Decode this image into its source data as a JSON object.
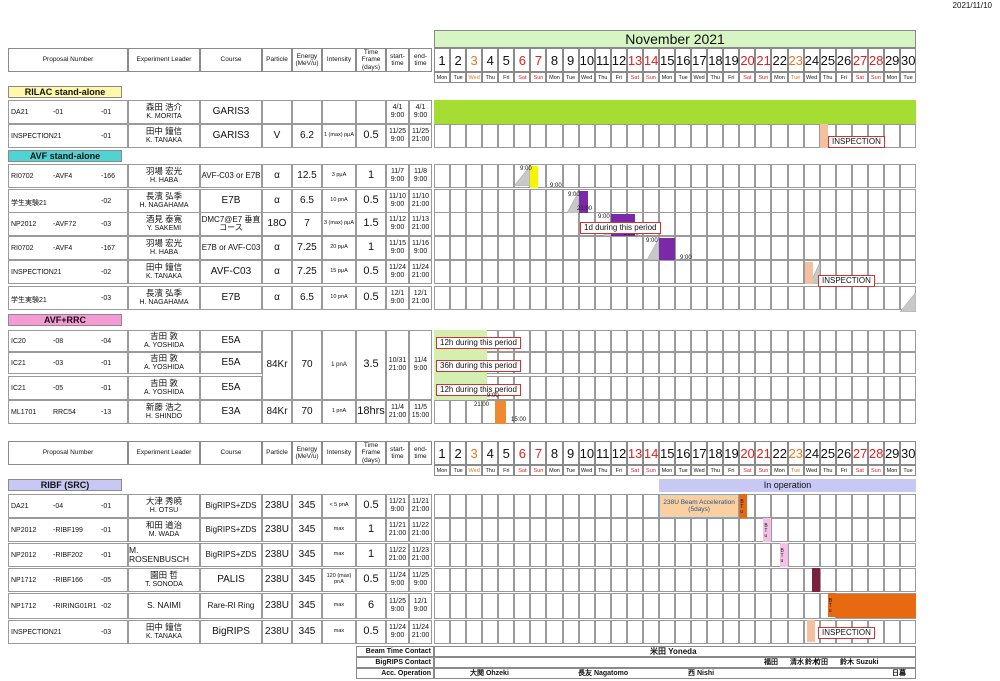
{
  "date_stamp": "2021/11/10",
  "month": "November 2021",
  "headers": {
    "proposal": "Proposal Number",
    "leader": "Experiment Leader",
    "course": "Course",
    "particle": "Particle",
    "energy": "Energy (MeV/u)",
    "intensity": "Intensity",
    "timeframe": "Time Frame (days)",
    "start": "start-time",
    "end": "end-time"
  },
  "days": [
    "1",
    "2",
    "3",
    "4",
    "5",
    "6",
    "7",
    "8",
    "9",
    "10",
    "11",
    "12",
    "13",
    "14",
    "15",
    "16",
    "17",
    "18",
    "19",
    "20",
    "21",
    "22",
    "23",
    "24",
    "25",
    "26",
    "27",
    "28",
    "29",
    "30"
  ],
  "dows": [
    "Mon",
    "Tue",
    "Wed",
    "Thu",
    "Fri",
    "Sat",
    "Sun",
    "Mon",
    "Tue",
    "Wed",
    "Thu",
    "Fri",
    "Sat",
    "Sun",
    "Mon",
    "Tue",
    "Wed",
    "Thu",
    "Fri",
    "Sat",
    "Sun",
    "Mon",
    "Tue",
    "Wed",
    "Thu",
    "Fri",
    "Sat",
    "Sun",
    "Mon",
    "Tue"
  ],
  "sections": {
    "rilac": "RILAC stand-alone",
    "avf": "AVF stand-alone",
    "avfrrc": "AVF+RRC",
    "ribf": "RIBF (SRC)"
  },
  "rilac": [
    {
      "pn": "DA21",
      "sub": "-01",
      "num": "-01",
      "l1": "森田 浩介",
      "l2": "K. MORITA",
      "course": "GARIS3",
      "particle": "",
      "energy": "",
      "intensity": "",
      "tf": "",
      "s1": "4/1",
      "s2": "9:00",
      "e1": "4/1",
      "e2": "9:00"
    },
    {
      "pn": "INSPECTION21",
      "sub": "",
      "num": "-01",
      "l1": "田中 鐘信",
      "l2": "K. TANAKA",
      "course": "GARIS3",
      "particle": "V",
      "energy": "6.2",
      "intensity": "1 (max) pμA",
      "tf": "0.5",
      "s1": "11/25",
      "s2": "9:00",
      "e1": "11/25",
      "e2": "21:00"
    }
  ],
  "avf": [
    {
      "pn": "RI0702",
      "sub": "-AVF4",
      "num": "-166",
      "l1": "羽場 宏光",
      "l2": "H. HABA",
      "course": "AVF-C03 or E7B",
      "particle": "α",
      "energy": "12.5",
      "intensity": "3 pμA",
      "tf": "1",
      "s1": "11/7",
      "s2": "9:00",
      "e1": "11/8",
      "e2": "9:00"
    },
    {
      "pn": "学生実験21",
      "sub": "",
      "num": "-02",
      "l1": "長濱 弘季",
      "l2": "H. NAGAHAMA",
      "course": "E7B",
      "particle": "α",
      "energy": "6.5",
      "intensity": "10 pnA",
      "tf": "0.5",
      "s1": "11/10",
      "s2": "9:00",
      "e1": "11/10",
      "e2": "21:00"
    },
    {
      "pn": "NP2012",
      "sub": "-AVF72",
      "num": "-03",
      "l1": "酒見 泰寛",
      "l2": "Y. SAKEMI",
      "course": "DMC7@E7 垂直コース",
      "particle": "18O",
      "energy": "7",
      "intensity": "3 (max) pμA",
      "tf": "1.5",
      "s1": "11/12",
      "s2": "9:00",
      "e1": "11/13",
      "e2": "21:00"
    },
    {
      "pn": "RI0702",
      "sub": "-AVF4",
      "num": "-167",
      "l1": "羽場 宏光",
      "l2": "H. HABA",
      "course": "E7B or AVF-C03",
      "particle": "α",
      "energy": "7.25",
      "intensity": "20 pμA",
      "tf": "1",
      "s1": "11/15",
      "s2": "9:00",
      "e1": "11/16",
      "e2": "9:00"
    },
    {
      "pn": "INSPECTION21",
      "sub": "",
      "num": "-02",
      "l1": "田中 鐘信",
      "l2": "K. TANAKA",
      "course": "AVF-C03",
      "particle": "α",
      "energy": "7.25",
      "intensity": "15 pμA",
      "tf": "0.5",
      "s1": "11/24",
      "s2": "9:00",
      "e1": "11/24",
      "e2": "21:00"
    },
    {
      "pn": "学生実験21",
      "sub": "",
      "num": "-03",
      "l1": "長濱 弘季",
      "l2": "H. NAGAHAMA",
      "course": "E7B",
      "particle": "α",
      "energy": "6.5",
      "intensity": "10 pnA",
      "tf": "0.5",
      "s1": "12/1",
      "s2": "9:00",
      "e1": "12/1",
      "e2": "21:00"
    }
  ],
  "avfrrc": [
    {
      "pn": "IC20",
      "sub": "-08",
      "num": "-04",
      "l1": "吉田 敦",
      "l2": "A. YOSHIDA",
      "course": "E5A"
    },
    {
      "pn": "IC21",
      "sub": "-03",
      "num": "-01",
      "l1": "吉田 敦",
      "l2": "A. YOSHIDA",
      "course": "E5A"
    },
    {
      "pn": "IC21",
      "sub": "-05",
      "num": "-01",
      "l1": "吉田 敦",
      "l2": "A. YOSHIDA",
      "course": "E5A"
    },
    {
      "pn": "ML1701",
      "sub": "RRC54",
      "num": "-13",
      "l1": "新藤 浩之",
      "l2": "H. SHINDO",
      "course": "E3A",
      "particle": "84Kr",
      "energy": "70",
      "intensity": "1 pnA",
      "tf": "18hrs",
      "s1": "11/4",
      "s2": "21:00",
      "e1": "11/5",
      "e2": "15:00"
    }
  ],
  "avfrrc_group": {
    "particle": "84Kr",
    "energy": "70",
    "intensity": "1 pnA",
    "tf": "3.5",
    "s1": "10/31",
    "s2": "21:00",
    "e1": "11/4",
    "e2": "9:00"
  },
  "ribf": [
    {
      "pn": "DA21",
      "sub": "-04",
      "num": "-01",
      "l1": "大津 秀暁",
      "l2": "H. OTSU",
      "course": "BigRIPS+ZDS",
      "particle": "238U",
      "energy": "345",
      "intensity": "< 5 pnA",
      "tf": "0.5",
      "s1": "11/21",
      "s2": "9:00",
      "e1": "11/21",
      "e2": "21:00"
    },
    {
      "pn": "NP2012",
      "sub": "-RIBF199",
      "num": "-01",
      "l1": "和田 道治",
      "l2": "M. WADA",
      "course": "BigRIPS+ZDS",
      "particle": "238U",
      "energy": "345",
      "intensity": "max",
      "tf": "1",
      "s1": "11/21",
      "s2": "21:00",
      "e1": "11/22",
      "e2": "21:00"
    },
    {
      "pn": "NP2012",
      "sub": "-RIBF202",
      "num": "-01",
      "l1": "M. ROSENBUSCH",
      "l2": "",
      "course": "BigRIPS+ZDS",
      "particle": "238U",
      "energy": "345",
      "intensity": "max",
      "tf": "1",
      "s1": "11/22",
      "s2": "21:00",
      "e1": "11/23",
      "e2": "21:00"
    },
    {
      "pn": "NP1712",
      "sub": "-RIBF166",
      "num": "-05",
      "l1": "園田 哲",
      "l2": "T. SONODA",
      "course": "PALIS",
      "particle": "238U",
      "energy": "345",
      "intensity": "120 (max) pnA",
      "tf": "0.5",
      "s1": "11/24",
      "s2": "9:00",
      "e1": "11/25",
      "e2": "9:00"
    },
    {
      "pn": "NP1712",
      "sub": "-RIRING01R1",
      "num": "-02",
      "l1": "S. NAIMI",
      "l2": "",
      "course": "Rare-RI Ring",
      "particle": "238U",
      "energy": "345",
      "intensity": "max",
      "tf": "6",
      "s1": "11/25",
      "s2": "9:00",
      "e1": "12/1",
      "e2": "9:00"
    },
    {
      "pn": "INSPECTION21",
      "sub": "",
      "num": "-03",
      "l1": "田中 鐘信",
      "l2": "K. TANAKA",
      "course": "BigRIPS",
      "particle": "238U",
      "energy": "345",
      "intensity": "max",
      "tf": "0.5",
      "s1": "11/24",
      "s2": "9:00",
      "e1": "11/24",
      "e2": "21:00"
    }
  ],
  "notes": {
    "inspection": "INSPECTION",
    "one_day": "1d during this period",
    "h12": "12h during this period",
    "h36": "36h during this period",
    "inop": "In operation",
    "u_accel": "238U Beam Acceleration (5days)",
    "bt": "B T u"
  },
  "times": {
    "t900": "9:00",
    "t2100": "21:00",
    "t1500": "15:00"
  },
  "footer": {
    "beam_label": "Beam Time Contact",
    "beam_val": "米田 Yoneda",
    "bigrips_label": "BigRIPS Contact",
    "bigrips_vals": [
      "福田",
      "清水",
      "鈴木",
      "竹田",
      "鈴木 Suzuki"
    ],
    "acc_label": "Acc. Operation",
    "acc_vals": [
      "大関 Ohzeki",
      "長友 Nagatomo",
      "西 Nishi",
      "日暮"
    ]
  }
}
